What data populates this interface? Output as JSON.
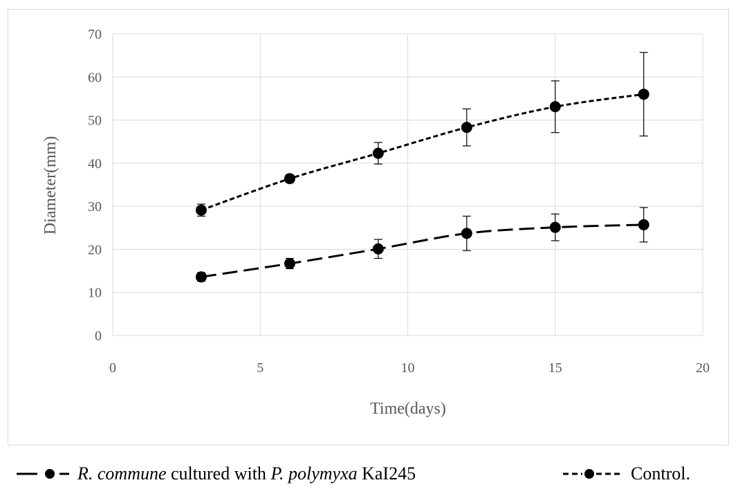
{
  "chart_data": {
    "type": "line",
    "xlabel": "Time(days)",
    "ylabel": "Diameter(mm)",
    "xlim": [
      0,
      20
    ],
    "ylim": [
      0,
      70
    ],
    "xticks": [
      0,
      5,
      10,
      15,
      20
    ],
    "yticks": [
      0,
      10,
      20,
      30,
      40,
      50,
      60,
      70
    ],
    "grid": true,
    "legend_position": "bottom",
    "series": [
      {
        "name": "R. commune cultured with P. polymyxa KaI245",
        "style": "long-dash",
        "color": "#000000",
        "x": [
          3,
          6,
          9,
          12,
          15,
          18
        ],
        "y": [
          13.6,
          16.7,
          20.1,
          23.7,
          25.1,
          25.7
        ],
        "error": [
          1.0,
          1.2,
          2.2,
          4.0,
          3.1,
          4.0
        ]
      },
      {
        "name": "Control.",
        "style": "short-dash",
        "color": "#000000",
        "x": [
          3,
          6,
          9,
          12,
          15,
          18
        ],
        "y": [
          29.1,
          36.4,
          42.3,
          48.3,
          53.1,
          56.0
        ],
        "error": [
          1.4,
          0.9,
          2.5,
          4.3,
          6.0,
          9.7
        ]
      }
    ]
  },
  "legend": {
    "item1": {
      "part1": "R. commune",
      "part2": " cultured with ",
      "part3": "P. polymyxa",
      "part4": " KaI245"
    },
    "item2": {
      "label": "Control."
    }
  }
}
